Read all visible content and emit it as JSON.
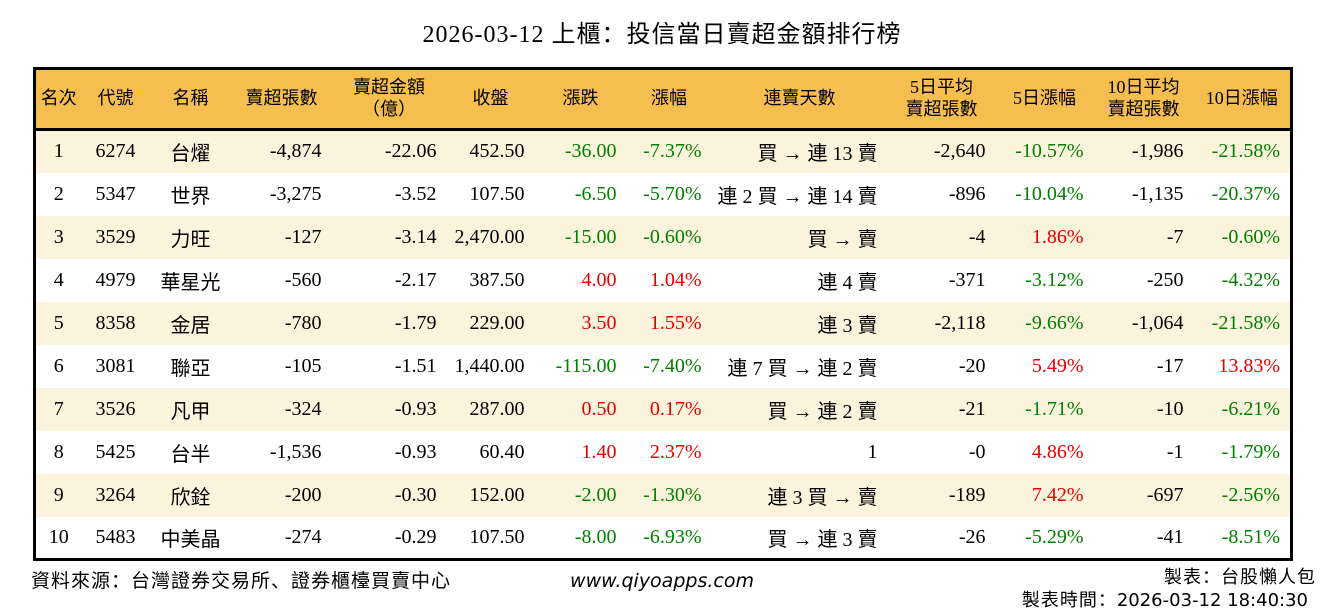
{
  "title": "2026-03-12 上櫃：投信當日賣超金額排行榜",
  "colors": {
    "header_bg": "#F6BE4E",
    "row_stripe": "#FCF3DC",
    "positive_red": "#E60000",
    "negative_green": "#008000",
    "border": "#000000"
  },
  "chart_data": {
    "type": "table",
    "title": "2026-03-12 上櫃：投信當日賣超金額排行榜",
    "columns": [
      {
        "key": "rank",
        "label": "名次"
      },
      {
        "key": "code",
        "label": "代號"
      },
      {
        "key": "name",
        "label": "名稱"
      },
      {
        "key": "net_sell_lots",
        "label": "賣超張數"
      },
      {
        "key": "net_sell_amount",
        "label": "賣超金額",
        "label2": "（億）"
      },
      {
        "key": "close",
        "label": "收盤"
      },
      {
        "key": "change",
        "label": "漲跌",
        "sign_colored": true
      },
      {
        "key": "change_pct",
        "label": "漲幅",
        "sign_colored": true
      },
      {
        "key": "sell_streak",
        "label": "連賣天數"
      },
      {
        "key": "avg5_lots",
        "label": "5日平均",
        "label2": "賣超張數"
      },
      {
        "key": "pct5",
        "label": "5日漲幅",
        "sign_colored": true
      },
      {
        "key": "avg10_lots",
        "label": "10日平均",
        "label2": "賣超張數"
      },
      {
        "key": "pct10",
        "label": "10日漲幅",
        "sign_colored": true
      }
    ],
    "rows": [
      {
        "cells": [
          "1",
          "6274",
          "台燿",
          "-4,874",
          "-22.06",
          "452.50",
          "-36.00",
          "-7.37%",
          "買 → 連 13 賣",
          "-2,640",
          "-10.57%",
          "-1,986",
          "-21.58%"
        ]
      },
      {
        "cells": [
          "2",
          "5347",
          "世界",
          "-3,275",
          "-3.52",
          "107.50",
          "-6.50",
          "-5.70%",
          "連 2 買 → 連 14 賣",
          "-896",
          "-10.04%",
          "-1,135",
          "-20.37%"
        ]
      },
      {
        "cells": [
          "3",
          "3529",
          "力旺",
          "-127",
          "-3.14",
          "2,470.00",
          "-15.00",
          "-0.60%",
          "買 → 賣",
          "-4",
          "1.86%",
          "-7",
          "-0.60%"
        ]
      },
      {
        "cells": [
          "4",
          "4979",
          "華星光",
          "-560",
          "-2.17",
          "387.50",
          "4.00",
          "1.04%",
          "連 4 賣",
          "-371",
          "-3.12%",
          "-250",
          "-4.32%"
        ]
      },
      {
        "cells": [
          "5",
          "8358",
          "金居",
          "-780",
          "-1.79",
          "229.00",
          "3.50",
          "1.55%",
          "連 3 賣",
          "-2,118",
          "-9.66%",
          "-1,064",
          "-21.58%"
        ]
      },
      {
        "cells": [
          "6",
          "3081",
          "聯亞",
          "-105",
          "-1.51",
          "1,440.00",
          "-115.00",
          "-7.40%",
          "連 7 買 → 連 2 賣",
          "-20",
          "5.49%",
          "-17",
          "13.83%"
        ]
      },
      {
        "cells": [
          "7",
          "3526",
          "凡甲",
          "-324",
          "-0.93",
          "287.00",
          "0.50",
          "0.17%",
          "買 → 連 2 賣",
          "-21",
          "-1.71%",
          "-10",
          "-6.21%"
        ]
      },
      {
        "cells": [
          "8",
          "5425",
          "台半",
          "-1,536",
          "-0.93",
          "60.40",
          "1.40",
          "2.37%",
          "1",
          "-0",
          "4.86%",
          "-1",
          "-1.79%"
        ]
      },
      {
        "cells": [
          "9",
          "3264",
          "欣銓",
          "-200",
          "-0.30",
          "152.00",
          "-2.00",
          "-1.30%",
          "連 3 買 → 賣",
          "-189",
          "7.42%",
          "-697",
          "-2.56%"
        ]
      },
      {
        "cells": [
          "10",
          "5483",
          "中美晶",
          "-274",
          "-0.29",
          "107.50",
          "-8.00",
          "-6.93%",
          "買 → 連 3 賣",
          "-26",
          "-5.29%",
          "-41",
          "-8.51%"
        ]
      }
    ]
  },
  "footer": {
    "source": "資料來源：台灣證券交易所、證券櫃檯買賣中心",
    "website": "www.qiyoapps.com",
    "made_by": "製表：台股懶人包",
    "made_at_label": "製表時間：",
    "made_at_value": "2026-03-12 18:40:30"
  }
}
